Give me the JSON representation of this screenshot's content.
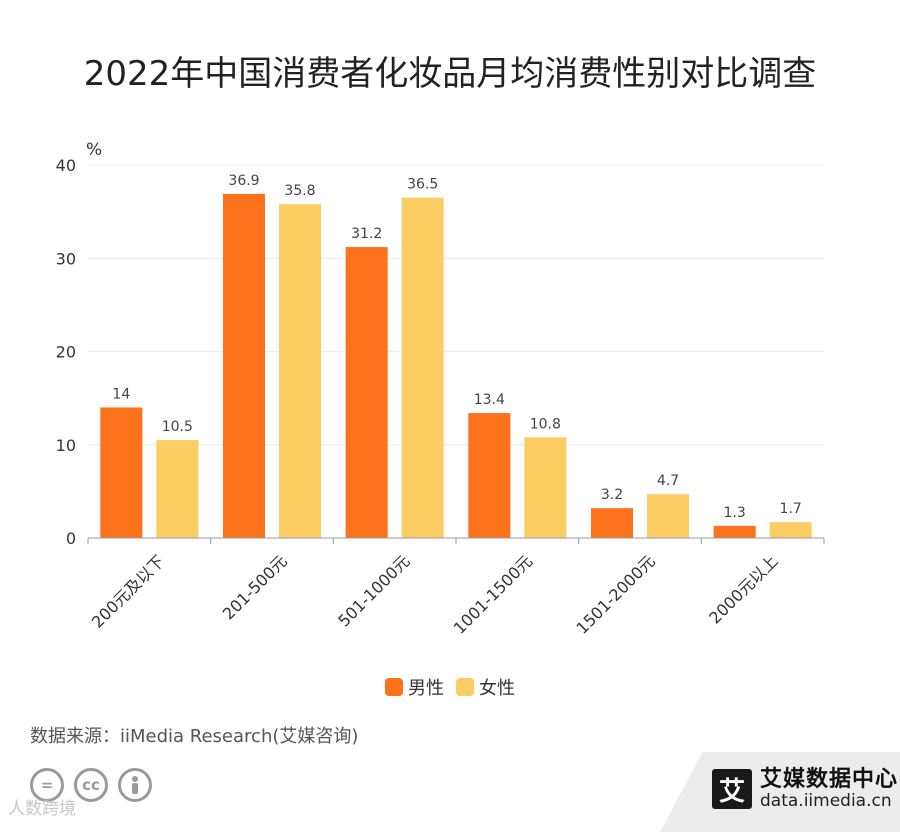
{
  "title": "2022年中国消费者化妆品月均消费性别对比调查",
  "chart_data": {
    "type": "bar",
    "title": "2022年中国消费者化妆品月均消费性别对比调查",
    "unit": "%",
    "categories": [
      "200元及以下",
      "201-500元",
      "501-1000元",
      "1001-1500元",
      "1501-2000元",
      "2000元以上"
    ],
    "series": [
      {
        "name": "男性",
        "color": "#fe721b",
        "values": [
          14,
          36.9,
          31.2,
          13.4,
          3.2,
          1.3
        ]
      },
      {
        "name": "女性",
        "color": "#fccd62",
        "values": [
          10.5,
          35.8,
          36.5,
          10.8,
          4.7,
          1.7
        ]
      }
    ],
    "ylim": [
      0,
      40
    ],
    "yticks": [
      0,
      10,
      20,
      30,
      40
    ],
    "grid": true,
    "legend": "bottom"
  },
  "source": "数据来源：iiMedia Research(艾媒咨询)",
  "watermark": "人数跨境",
  "brand": {
    "logo_char": "艾",
    "name": "艾媒数据中心",
    "url": "data.iimedia.cn"
  },
  "license_icons": [
    "=",
    "cc",
    "person-icon"
  ]
}
